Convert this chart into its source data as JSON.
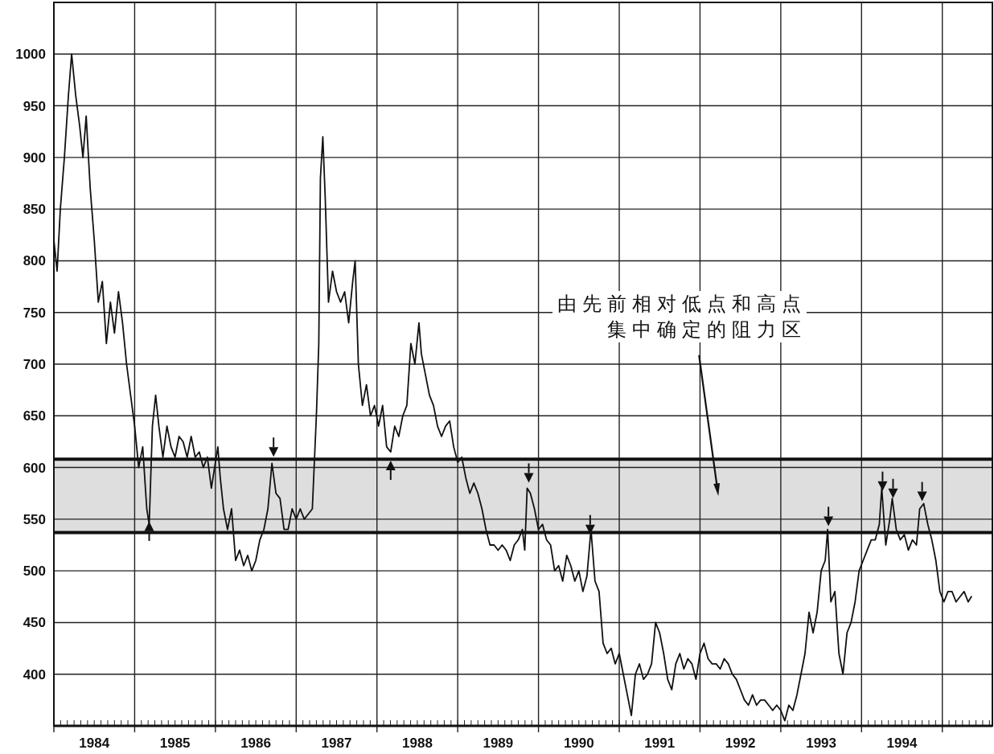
{
  "chart_data": {
    "type": "line",
    "xlim": [
      1984,
      1995.62
    ],
    "ylim": [
      350,
      1050
    ],
    "xticks": [
      {
        "value": 1984,
        "label": null
      },
      {
        "value": 1985,
        "label": null
      },
      {
        "value": 1986,
        "label": null
      },
      {
        "value": 1987,
        "label": null
      },
      {
        "value": 1988,
        "label": null
      },
      {
        "value": 1989,
        "label": null
      },
      {
        "value": 1990,
        "label": null
      },
      {
        "value": 1991,
        "label": null
      },
      {
        "value": 1992,
        "label": null
      },
      {
        "value": 1993,
        "label": null
      },
      {
        "value": 1994,
        "label": null
      },
      {
        "value": 1995,
        "label": null
      },
      {
        "value": 1984.5,
        "label": "1984"
      },
      {
        "value": 1985.5,
        "label": "1985"
      },
      {
        "value": 1986.5,
        "label": "1986"
      },
      {
        "value": 1987.5,
        "label": "1987"
      },
      {
        "value": 1988.5,
        "label": "1988"
      },
      {
        "value": 1989.5,
        "label": "1989"
      },
      {
        "value": 1990.5,
        "label": "1990"
      },
      {
        "value": 1991.5,
        "label": "1991"
      },
      {
        "value": 1992.5,
        "label": "1992"
      },
      {
        "value": 1993.5,
        "label": "1993"
      },
      {
        "value": 1994.5,
        "label": "1994"
      }
    ],
    "yticks": [
      400,
      450,
      500,
      550,
      600,
      650,
      700,
      750,
      800,
      850,
      900,
      950,
      1000
    ],
    "grid": true,
    "line_style": "solid",
    "series": [
      {
        "color": "#111111",
        "x": [
          1984.0,
          1984.04,
          1984.08,
          1984.13,
          1984.18,
          1984.22,
          1984.27,
          1984.32,
          1984.36,
          1984.4,
          1984.45,
          1984.5,
          1984.55,
          1984.6,
          1984.65,
          1984.7,
          1984.75,
          1984.8,
          1984.85,
          1984.9,
          1984.95,
          1985.0,
          1985.05,
          1985.1,
          1985.15,
          1985.18,
          1985.22,
          1985.26,
          1985.3,
          1985.35,
          1985.4,
          1985.45,
          1985.5,
          1985.55,
          1985.6,
          1985.65,
          1985.7,
          1985.75,
          1985.8,
          1985.85,
          1985.9,
          1985.95,
          1986.03,
          1986.06,
          1986.1,
          1986.15,
          1986.2,
          1986.25,
          1986.3,
          1986.35,
          1986.4,
          1986.45,
          1986.5,
          1986.55,
          1986.6,
          1986.65,
          1986.7,
          1986.75,
          1986.8,
          1986.85,
          1986.9,
          1986.95,
          1987.0,
          1987.05,
          1987.1,
          1987.15,
          1987.2,
          1987.25,
          1987.28,
          1987.3,
          1987.33,
          1987.36,
          1987.4,
          1987.45,
          1987.5,
          1987.55,
          1987.6,
          1987.65,
          1987.7,
          1987.73,
          1987.77,
          1987.82,
          1987.87,
          1987.92,
          1987.97,
          1988.02,
          1988.07,
          1988.12,
          1988.17,
          1988.22,
          1988.27,
          1988.32,
          1988.37,
          1988.42,
          1988.47,
          1988.52,
          1988.55,
          1988.6,
          1988.65,
          1988.7,
          1988.75,
          1988.8,
          1988.85,
          1988.9,
          1988.95,
          1989.0,
          1989.05,
          1989.1,
          1989.15,
          1989.2,
          1989.25,
          1989.3,
          1989.35,
          1989.4,
          1989.45,
          1989.5,
          1989.55,
          1989.6,
          1989.65,
          1989.7,
          1989.75,
          1989.8,
          1989.83,
          1989.86,
          1989.9,
          1989.95,
          1990.0,
          1990.05,
          1990.1,
          1990.15,
          1990.2,
          1990.25,
          1990.3,
          1990.35,
          1990.4,
          1990.45,
          1990.5,
          1990.55,
          1990.6,
          1990.65,
          1990.7,
          1990.75,
          1990.8,
          1990.85,
          1990.9,
          1990.95,
          1991.0,
          1991.05,
          1991.1,
          1991.15,
          1991.2,
          1991.25,
          1991.3,
          1991.35,
          1991.4,
          1991.45,
          1991.5,
          1991.55,
          1991.6,
          1991.65,
          1991.7,
          1991.75,
          1991.8,
          1991.85,
          1991.9,
          1991.95,
          1992.0,
          1992.05,
          1992.1,
          1992.15,
          1992.2,
          1992.25,
          1992.3,
          1992.35,
          1992.4,
          1992.45,
          1992.5,
          1992.55,
          1992.6,
          1992.65,
          1992.7,
          1992.75,
          1992.8,
          1992.85,
          1992.9,
          1992.95,
          1993.0,
          1993.05,
          1993.1,
          1993.15,
          1993.2,
          1993.25,
          1993.3,
          1993.35,
          1993.4,
          1993.45,
          1993.5,
          1993.55,
          1993.58,
          1993.62,
          1993.67,
          1993.72,
          1993.77,
          1993.82,
          1993.87,
          1993.92,
          1993.97,
          1994.02,
          1994.07,
          1994.12,
          1994.17,
          1994.22,
          1994.25,
          1994.3,
          1994.35,
          1994.38,
          1994.43,
          1994.48,
          1994.53,
          1994.58,
          1994.63,
          1994.68,
          1994.72,
          1994.77,
          1994.82,
          1994.87,
          1994.92,
          1994.97,
          1995.02,
          1995.07,
          1995.12,
          1995.17,
          1995.22,
          1995.27,
          1995.32,
          1995.36
        ],
        "values": [
          820,
          790,
          850,
          900,
          960,
          1000,
          960,
          930,
          900,
          940,
          870,
          820,
          760,
          780,
          720,
          760,
          730,
          770,
          740,
          700,
          670,
          640,
          600,
          620,
          560,
          545,
          640,
          670,
          640,
          610,
          640,
          620,
          610,
          630,
          625,
          610,
          630,
          610,
          615,
          600,
          610,
          580,
          620,
          590,
          560,
          540,
          560,
          510,
          520,
          505,
          515,
          500,
          510,
          530,
          540,
          560,
          604,
          575,
          570,
          540,
          540,
          560,
          550,
          560,
          550,
          555,
          560,
          650,
          720,
          880,
          920,
          860,
          760,
          790,
          770,
          760,
          770,
          740,
          780,
          800,
          700,
          660,
          680,
          650,
          660,
          640,
          660,
          620,
          615,
          640,
          630,
          650,
          660,
          720,
          700,
          740,
          710,
          690,
          670,
          660,
          640,
          630,
          640,
          645,
          620,
          605,
          610,
          590,
          575,
          585,
          575,
          560,
          540,
          525,
          525,
          520,
          525,
          520,
          510,
          525,
          530,
          540,
          520,
          580,
          575,
          560,
          540,
          545,
          530,
          525,
          500,
          505,
          490,
          515,
          505,
          490,
          500,
          480,
          495,
          540,
          490,
          480,
          430,
          420,
          425,
          410,
          420,
          400,
          380,
          360,
          400,
          410,
          395,
          400,
          410,
          450,
          440,
          420,
          395,
          385,
          410,
          420,
          405,
          415,
          410,
          395,
          420,
          430,
          415,
          410,
          410,
          405,
          415,
          410,
          400,
          395,
          385,
          375,
          370,
          380,
          370,
          375,
          375,
          370,
          365,
          370,
          365,
          355,
          370,
          365,
          380,
          400,
          420,
          460,
          440,
          460,
          500,
          510,
          540,
          470,
          480,
          420,
          400,
          440,
          450,
          470,
          500,
          510,
          520,
          530,
          530,
          545,
          580,
          525,
          550,
          570,
          540,
          530,
          535,
          520,
          530,
          525,
          560,
          565,
          545,
          530,
          510,
          480,
          470,
          480,
          480,
          470,
          475,
          480,
          470,
          475
        ]
      },
      {
        "type": "scatter",
        "color": "#111111",
        "marker": "triangle",
        "x": [
          1986.72,
          1989.88,
          1990.64,
          1993.59,
          1994.26,
          1994.39,
          1994.75
        ],
        "values": [
          615,
          590,
          540,
          548,
          582,
          575,
          572
        ]
      },
      {
        "type": "scatter",
        "color": "#111111",
        "marker": "triangle",
        "x": [
          1985.18,
          1988.17
        ],
        "values": [
          543,
          602
        ]
      }
    ],
    "ref_lines": [
      {
        "axis": "y",
        "value": 608,
        "color": "#111111"
      },
      {
        "axis": "y",
        "value": 537,
        "color": "#111111"
      }
    ],
    "bands": [
      {
        "axis": "y",
        "from": 537,
        "to": 608,
        "color": "#dedede"
      }
    ],
    "annotations": [
      "由先前相对低点和高点集中确定的阻力区"
    ]
  }
}
